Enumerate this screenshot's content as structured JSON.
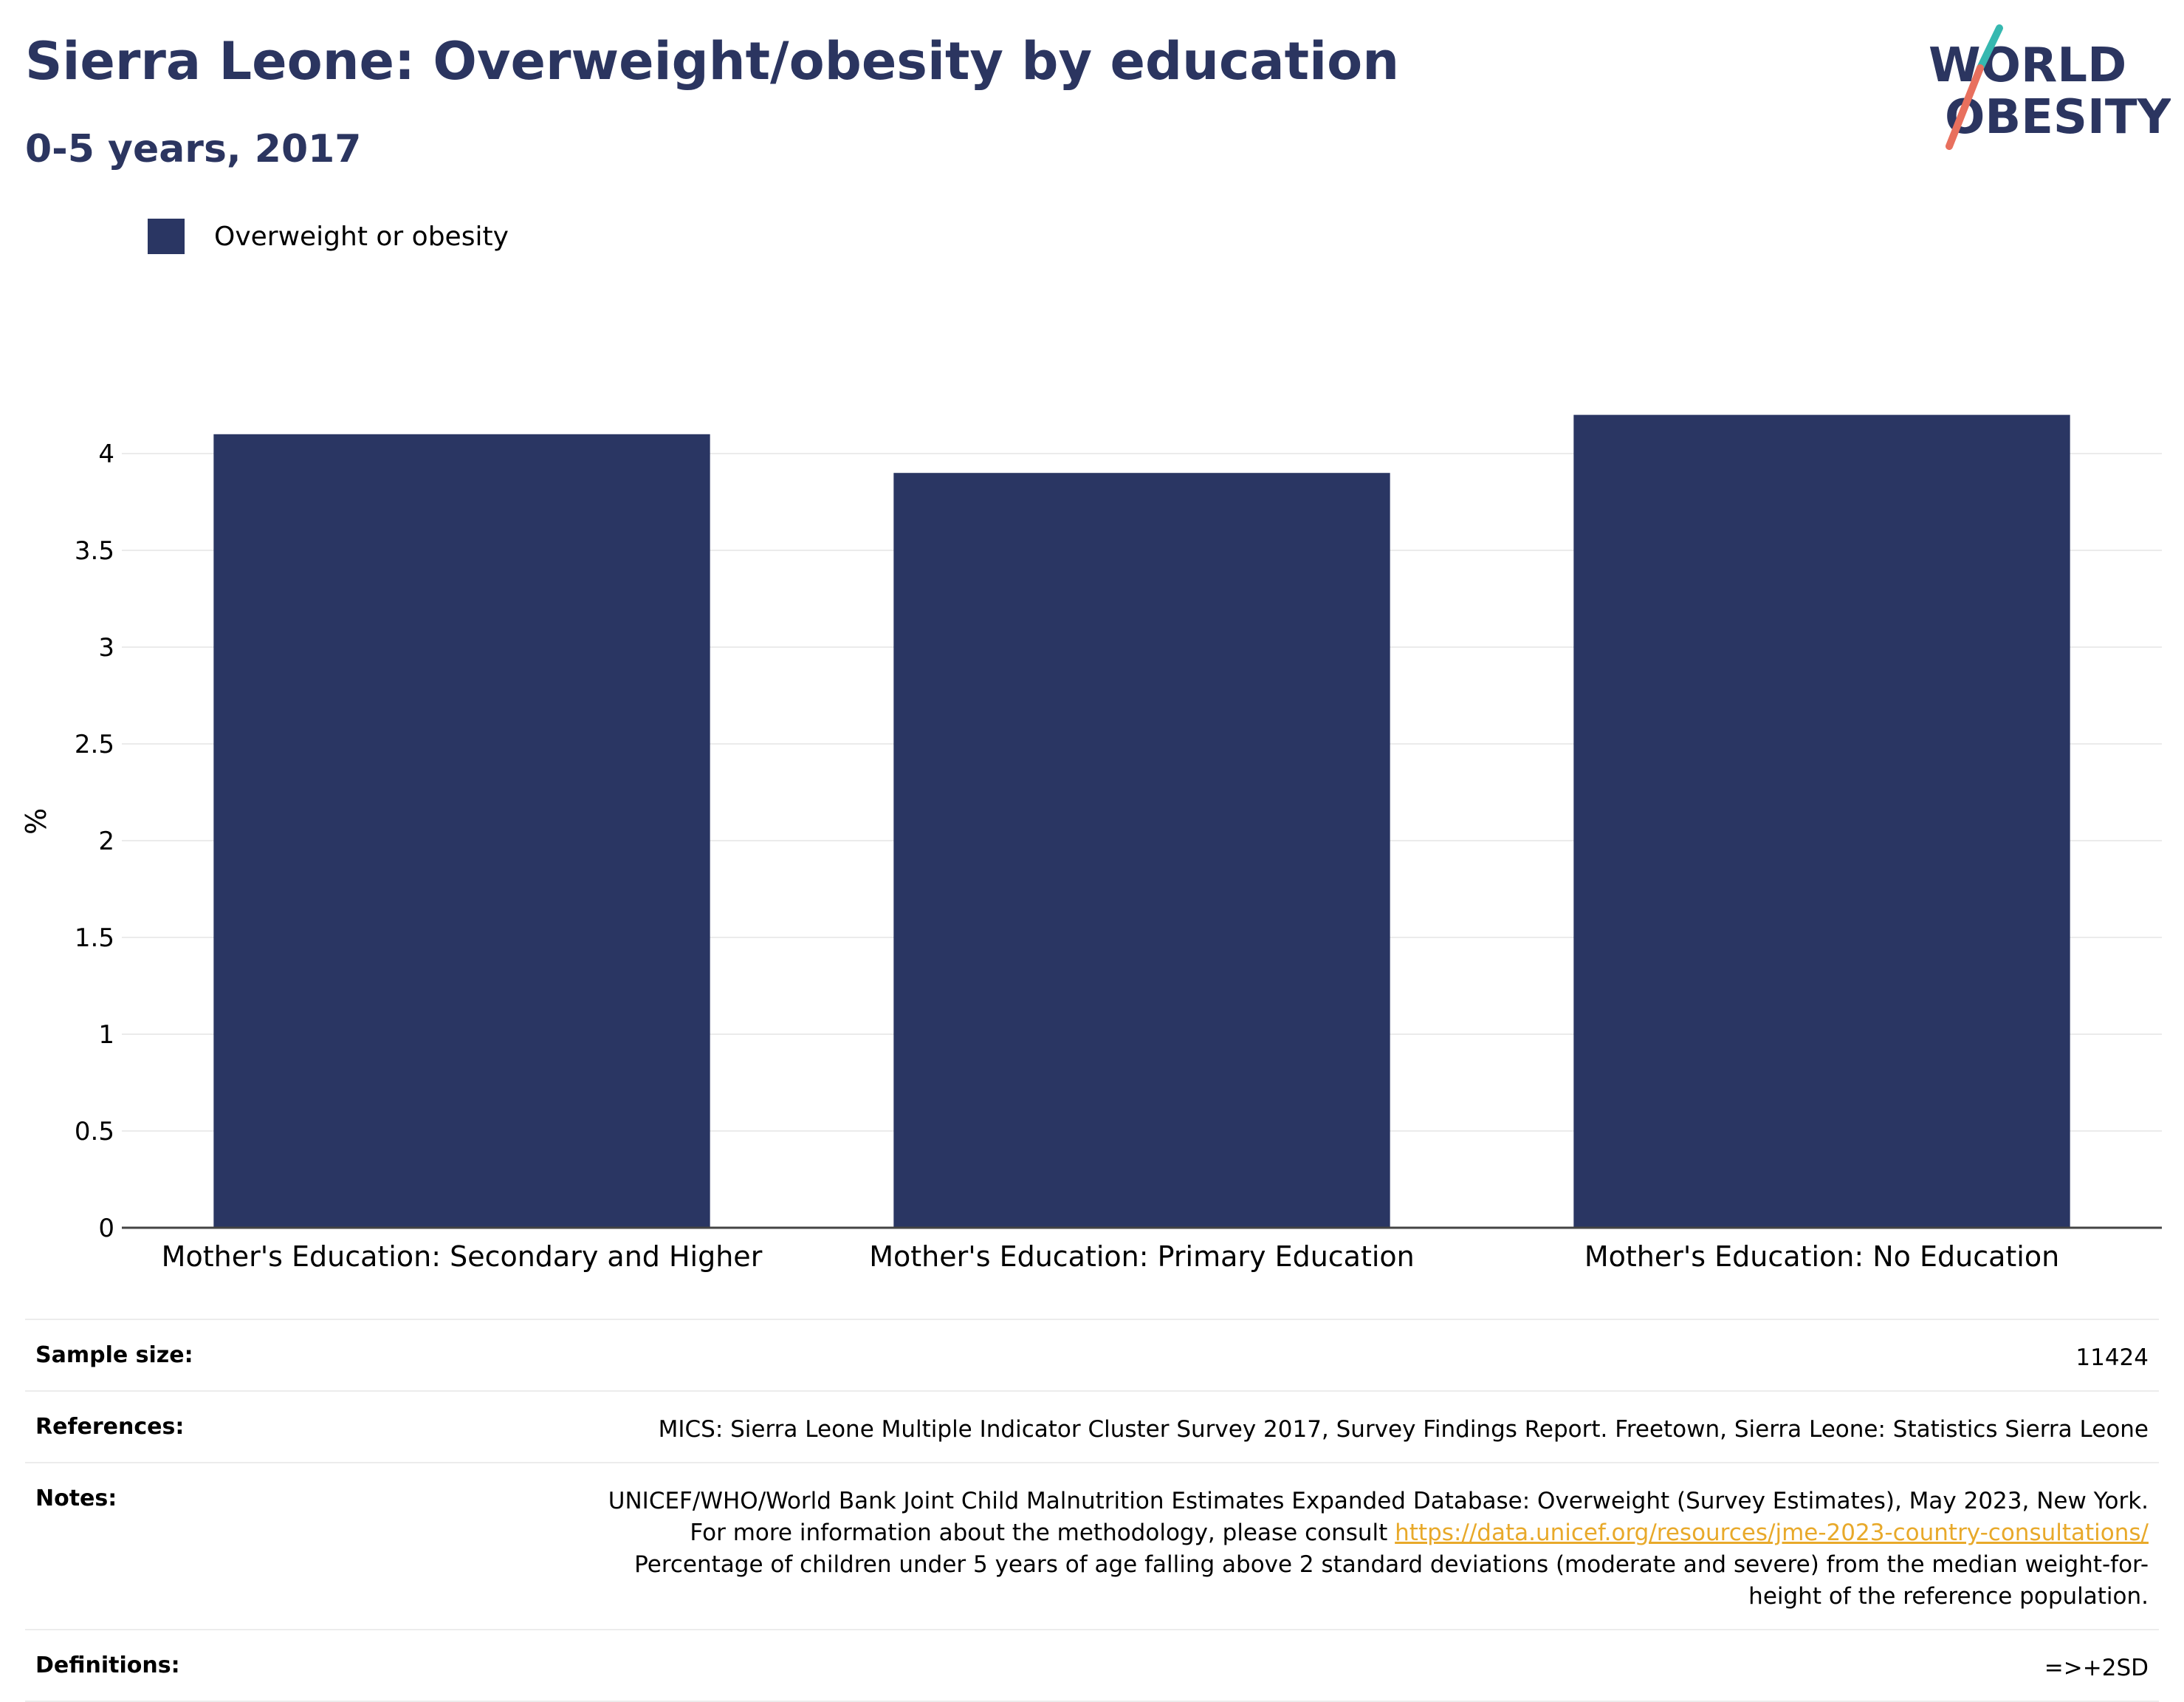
{
  "header": {
    "title": "Sierra Leone: Overweight/obesity by education",
    "subtitle": "0-5 years, 2017"
  },
  "logo": {
    "line1": "WORLD",
    "line2": "OBESITY",
    "colors": {
      "text": "#2b3560",
      "slash_top": "#36b8b0",
      "slash_bottom": "#e8705e"
    }
  },
  "legend": {
    "label": "Overweight or obesity"
  },
  "chart_data": {
    "type": "bar",
    "categories": [
      "Mother's Education: Secondary and Higher",
      "Mother's Education: Primary Education",
      "Mother's Education: No Education"
    ],
    "series": [
      {
        "name": "Overweight or obesity",
        "values": [
          4.1,
          3.9,
          4.2
        ],
        "color": "#2a3663"
      }
    ],
    "ylabel": "%",
    "ylim": [
      0,
      4.2
    ],
    "yticks": [
      "0",
      "0.5",
      "1",
      "1.5",
      "2",
      "2.5",
      "3",
      "3.5",
      "4"
    ],
    "grid": true,
    "legend_position": "top-left"
  },
  "info": {
    "sample_size_label": "Sample size:",
    "sample_size_value": "11424",
    "references_label": "References:",
    "references_value": "MICS: Sierra Leone Multiple Indicator Cluster Survey 2017, Survey Findings Report. Freetown, Sierra Leone: Statistics Sierra Leone",
    "notes_label": "Notes:",
    "notes_text_1": "UNICEF/WHO/World Bank Joint Child Malnutrition Estimates Expanded Database: Overweight (Survey Estimates), May 2023, New York. For more information about the methodology, please consult ",
    "notes_link": "https://data.unicef.org/resources/jme-2023-country-consultations/",
    "notes_text_2": "Percentage of children under 5 years of age falling above 2 standard deviations (moderate and severe) from the median weight-for-height of the reference population.",
    "definitions_label": "Definitions:",
    "definitions_value": "=>+2SD"
  }
}
